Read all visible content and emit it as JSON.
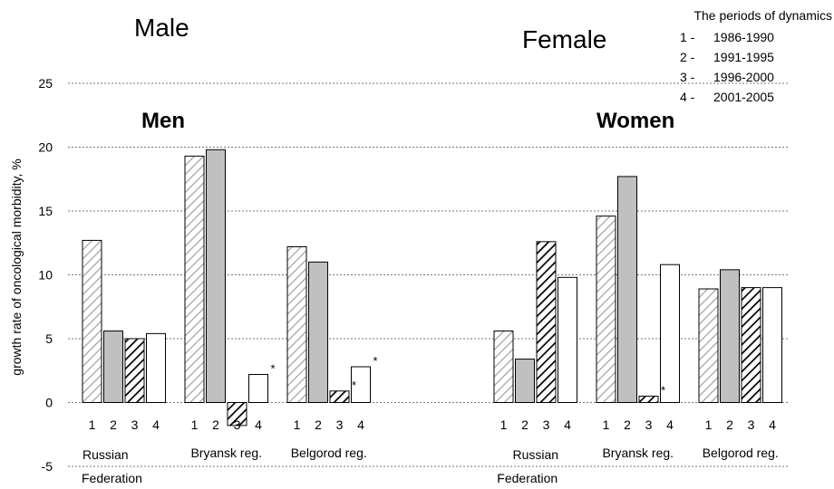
{
  "headings": {
    "male": "Male",
    "female": "Female",
    "men": "Men",
    "women": "Women"
  },
  "legend": {
    "title": "The periods of dynamics",
    "items": [
      {
        "num": "1 -",
        "range": "1986-1990"
      },
      {
        "num": "2 -",
        "range": "1991-1995"
      },
      {
        "num": "3 -",
        "range": "1996-2000"
      },
      {
        "num": "4 -",
        "range": "2001-2005"
      }
    ]
  },
  "chart_data": {
    "type": "bar",
    "ylabel": "growth rate of oncological morbidity, %",
    "ylim": [
      -5,
      25
    ],
    "yticks": [
      -5,
      0,
      5,
      10,
      15,
      20,
      25
    ],
    "grid": "horizontal dotted",
    "groups": [
      {
        "panel": "Men",
        "region_line1": "Russian",
        "region_line2": "Federation",
        "period_labels": [
          "1",
          "2",
          "3",
          "4"
        ],
        "values": [
          12.7,
          5.6,
          5.0,
          5.4
        ],
        "asterisk": [
          false,
          false,
          false,
          false
        ]
      },
      {
        "panel": "Men",
        "region_line1": "Bryansk reg.",
        "region_line2": "",
        "period_labels": [
          "1",
          "2",
          "3",
          "4"
        ],
        "values": [
          19.3,
          19.8,
          -1.8,
          2.2
        ],
        "asterisk": [
          false,
          false,
          false,
          true
        ]
      },
      {
        "panel": "Men",
        "region_line1": "Belgorod reg.",
        "region_line2": "",
        "period_labels": [
          "1",
          "2",
          "3",
          "4"
        ],
        "values": [
          12.2,
          11.0,
          0.9,
          2.8
        ],
        "asterisk": [
          false,
          false,
          true,
          true
        ]
      },
      {
        "panel": "Women",
        "region_line1": "Russian",
        "region_line2": "Federation",
        "period_labels": [
          "1",
          "2",
          "3",
          "4"
        ],
        "values": [
          5.6,
          3.4,
          12.6,
          9.8
        ],
        "asterisk": [
          false,
          false,
          false,
          false
        ]
      },
      {
        "panel": "Women",
        "region_line1": "Bryansk reg.",
        "region_line2": "",
        "period_labels": [
          "1",
          "2",
          "3",
          "4"
        ],
        "values": [
          14.6,
          17.7,
          0.5,
          10.8
        ],
        "asterisk": [
          false,
          false,
          true,
          false
        ]
      },
      {
        "panel": "Women",
        "region_line1": "Belgorod reg.",
        "region_line2": "",
        "period_labels": [
          "1",
          "2",
          "3",
          "4"
        ],
        "values": [
          8.9,
          10.4,
          9.0,
          9.0
        ],
        "asterisk": [
          false,
          false,
          false,
          false
        ]
      }
    ],
    "asterisk_mark": "*",
    "series_styles": [
      {
        "period": "1",
        "fill": "light-hatch",
        "color": "#bfbfbf"
      },
      {
        "period": "2",
        "fill": "solid",
        "color": "#bfbfbf"
      },
      {
        "period": "3",
        "fill": "dark-hatch",
        "color": "#000000"
      },
      {
        "period": "4",
        "fill": "solid",
        "color": "#ffffff"
      }
    ]
  }
}
